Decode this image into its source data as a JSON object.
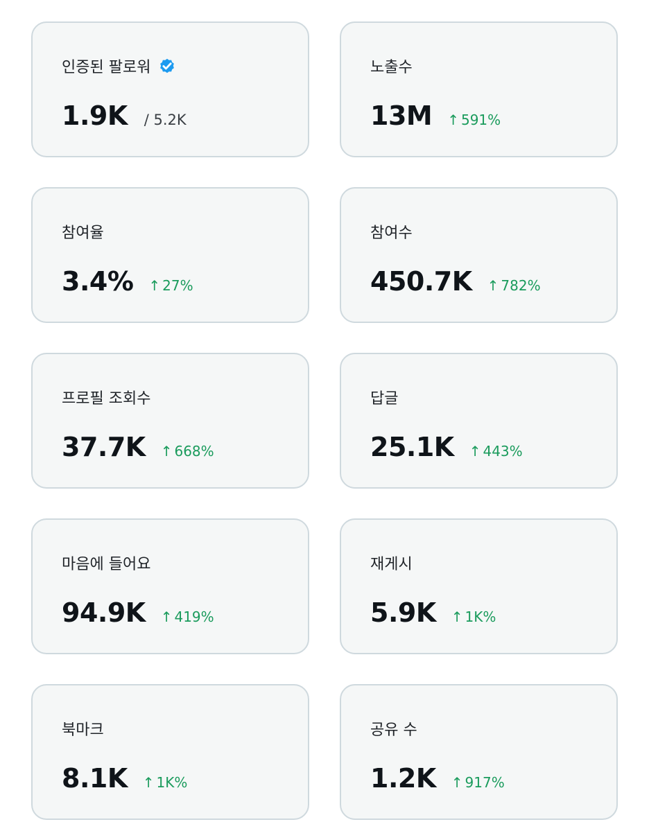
{
  "metrics": [
    {
      "label": "인증된 팔로워",
      "value": "1.9K",
      "sub": "/ 5.2K",
      "verified": true
    },
    {
      "label": "노출수",
      "value": "13M",
      "change": "591%"
    },
    {
      "label": "참여율",
      "value": "3.4%",
      "change": "27%"
    },
    {
      "label": "참여수",
      "value": "450.7K",
      "change": "782%"
    },
    {
      "label": "프로필 조회수",
      "value": "37.7K",
      "change": "668%"
    },
    {
      "label": "답글",
      "value": "25.1K",
      "change": "443%"
    },
    {
      "label": "마음에 들어요",
      "value": "94.9K",
      "change": "419%"
    },
    {
      "label": "재게시",
      "value": "5.9K",
      "change": "1K%"
    },
    {
      "label": "북마크",
      "value": "8.1K",
      "change": "1K%"
    },
    {
      "label": "공유 수",
      "value": "1.2K",
      "change": "917%"
    }
  ],
  "arrow_glyph": "↑",
  "colors": {
    "card_bg": "#f5f7f7",
    "card_border": "#cfd9de",
    "positive": "#1a9b5c",
    "verified_badge": "#1d9bf0"
  },
  "icons": {
    "verified": "verified-badge-icon",
    "trend": "arrow-up-icon"
  }
}
